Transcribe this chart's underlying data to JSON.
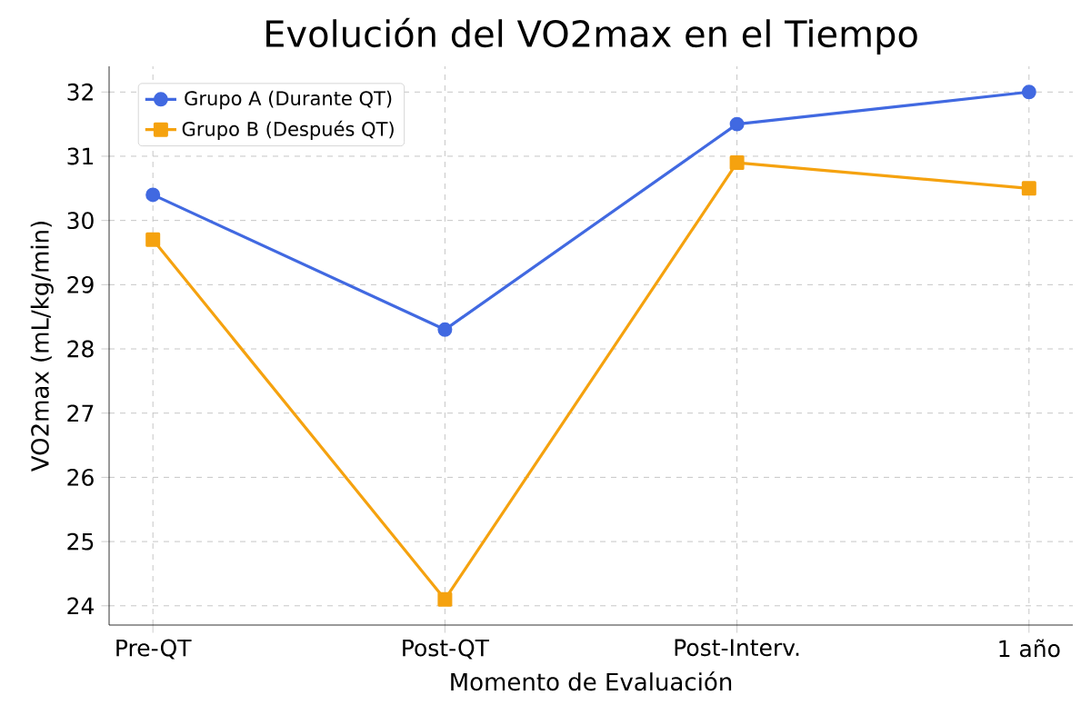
{
  "chart_data": {
    "type": "line",
    "title": "Evolución del VO2max en el Tiempo",
    "xlabel": "Momento de Evaluación",
    "ylabel": "VO2max (mL/kg/min)",
    "categories": [
      "Pre-QT",
      "Post-QT",
      "Post-Interv.",
      "1 año"
    ],
    "series": [
      {
        "name": "Grupo A (Durante QT)",
        "color": "#4169e1",
        "marker": "circle",
        "values": [
          30.4,
          28.3,
          31.5,
          32.0
        ]
      },
      {
        "name": "Grupo B (Después QT)",
        "color": "#f5a20f",
        "marker": "square",
        "values": [
          29.7,
          24.1,
          30.9,
          30.5
        ]
      }
    ],
    "ylim": [
      23.7,
      32.4
    ],
    "yticks": [
      24,
      25,
      26,
      27,
      28,
      29,
      30,
      31,
      32
    ],
    "grid": true,
    "legend": "top left",
    "line_style": "solid"
  }
}
